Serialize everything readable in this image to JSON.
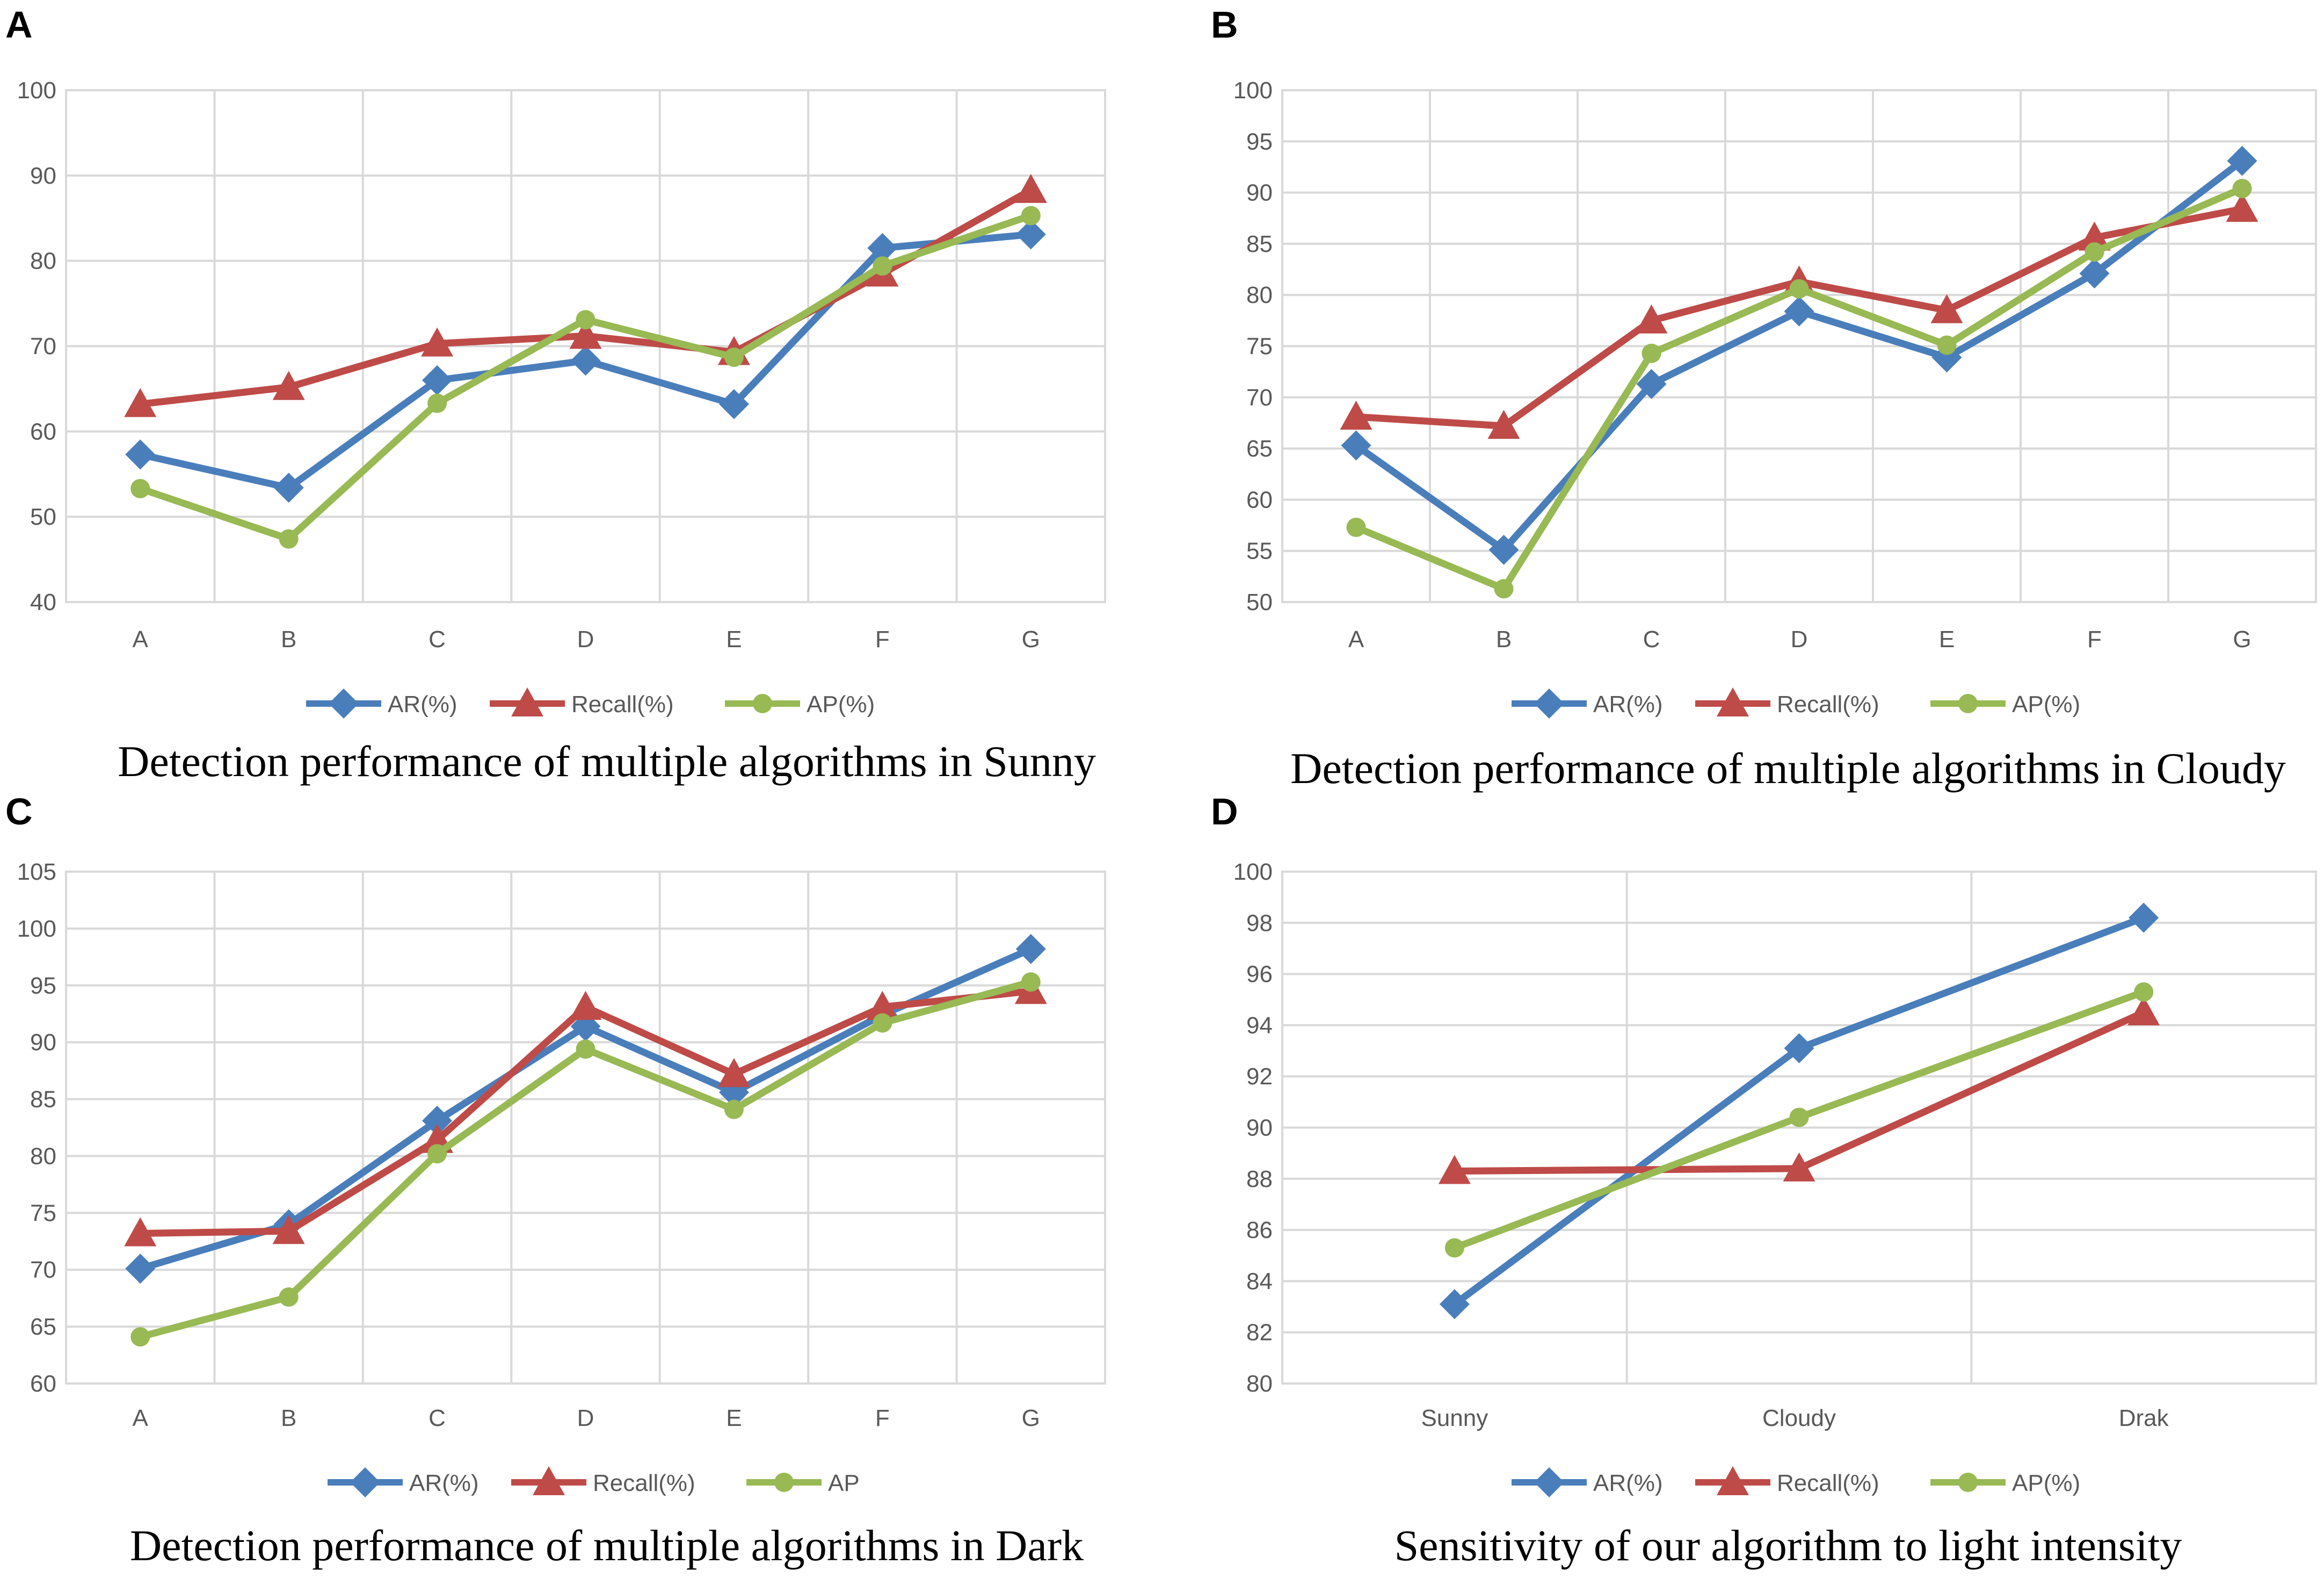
{
  "colors": {
    "AR": "#4a7ebb",
    "Recall": "#be4b48",
    "AP": "#98b954"
  },
  "chart_data": [
    {
      "panel": "A",
      "type": "line",
      "title": "Detection performance of multiple algorithms in Sunny",
      "categories": [
        "A",
        "B",
        "C",
        "D",
        "E",
        "F",
        "G"
      ],
      "ylim": [
        40,
        100
      ],
      "yticks": [
        "40",
        "50",
        "60",
        "70",
        "80",
        "90",
        "100"
      ],
      "grid": true,
      "legend": "bottom",
      "series": [
        {
          "name": "AR(%)",
          "key": "AR",
          "marker": "diamond",
          "values": [
            57.3,
            53.4,
            66.0,
            68.3,
            63.2,
            81.5,
            83.1
          ]
        },
        {
          "name": "Recall(%)",
          "key": "Recall",
          "marker": "triangle",
          "values": [
            63.2,
            65.2,
            70.3,
            71.2,
            69.3,
            78.5,
            88.3
          ]
        },
        {
          "name": "AP(%)",
          "key": "AP",
          "marker": "circle",
          "values": [
            53.3,
            47.4,
            63.3,
            73.1,
            68.7,
            79.4,
            85.3
          ]
        }
      ]
    },
    {
      "panel": "B",
      "type": "line",
      "title": "Detection performance of multiple algorithms in Cloudy",
      "categories": [
        "A",
        "B",
        "C",
        "D",
        "E",
        "F",
        "G"
      ],
      "ylim": [
        50,
        100
      ],
      "yticks": [
        "50",
        "55",
        "60",
        "65",
        "70",
        "75",
        "80",
        "85",
        "90",
        "95",
        "100"
      ],
      "grid": true,
      "legend": "bottom",
      "series": [
        {
          "name": "AR(%)",
          "key": "AR",
          "marker": "diamond",
          "values": [
            65.3,
            55.1,
            71.3,
            78.4,
            73.9,
            82.1,
            93.1
          ]
        },
        {
          "name": "Recall(%)",
          "key": "Recall",
          "marker": "triangle",
          "values": [
            68.1,
            67.2,
            77.5,
            81.3,
            78.5,
            85.6,
            88.4
          ]
        },
        {
          "name": "AP(%)",
          "key": "AP",
          "marker": "circle",
          "values": [
            57.3,
            51.3,
            74.3,
            80.6,
            75.1,
            84.2,
            90.4
          ]
        }
      ]
    },
    {
      "panel": "C",
      "type": "line",
      "title": "Detection performance of multiple algorithms in Dark",
      "categories": [
        "A",
        "B",
        "C",
        "D",
        "E",
        "F",
        "G"
      ],
      "ylim": [
        60,
        105
      ],
      "yticks": [
        "60",
        "65",
        "70",
        "75",
        "80",
        "85",
        "90",
        "95",
        "100",
        "105"
      ],
      "grid": true,
      "legend": "bottom",
      "series": [
        {
          "name": "AR(%)",
          "key": "AR",
          "marker": "diamond",
          "values": [
            70.1,
            74.0,
            83.1,
            91.4,
            85.6,
            92.4,
            98.2
          ]
        },
        {
          "name": "Recall(%)",
          "key": "Recall",
          "marker": "triangle",
          "values": [
            73.2,
            73.4,
            81.4,
            93.1,
            87.2,
            93.1,
            94.5
          ]
        },
        {
          "name": "AP",
          "key": "AP",
          "marker": "circle",
          "values": [
            64.1,
            67.6,
            80.2,
            89.4,
            84.1,
            91.7,
            95.3
          ]
        }
      ]
    },
    {
      "panel": "D",
      "type": "line",
      "title": "Sensitivity of our algorithm to light intensity",
      "categories": [
        "Sunny",
        "Cloudy",
        "Drak"
      ],
      "ylim": [
        80,
        100
      ],
      "yticks": [
        "80",
        "82",
        "84",
        "86",
        "88",
        "90",
        "92",
        "94",
        "96",
        "98",
        "100"
      ],
      "grid": true,
      "legend": "bottom",
      "series": [
        {
          "name": "AR(%)",
          "key": "AR",
          "marker": "diamond",
          "values": [
            83.1,
            93.1,
            98.2
          ]
        },
        {
          "name": "Recall(%)",
          "key": "Recall",
          "marker": "triangle",
          "values": [
            88.3,
            88.4,
            94.5
          ]
        },
        {
          "name": "AP(%)",
          "key": "AP",
          "marker": "circle",
          "values": [
            85.3,
            90.4,
            95.3
          ]
        }
      ]
    }
  ]
}
